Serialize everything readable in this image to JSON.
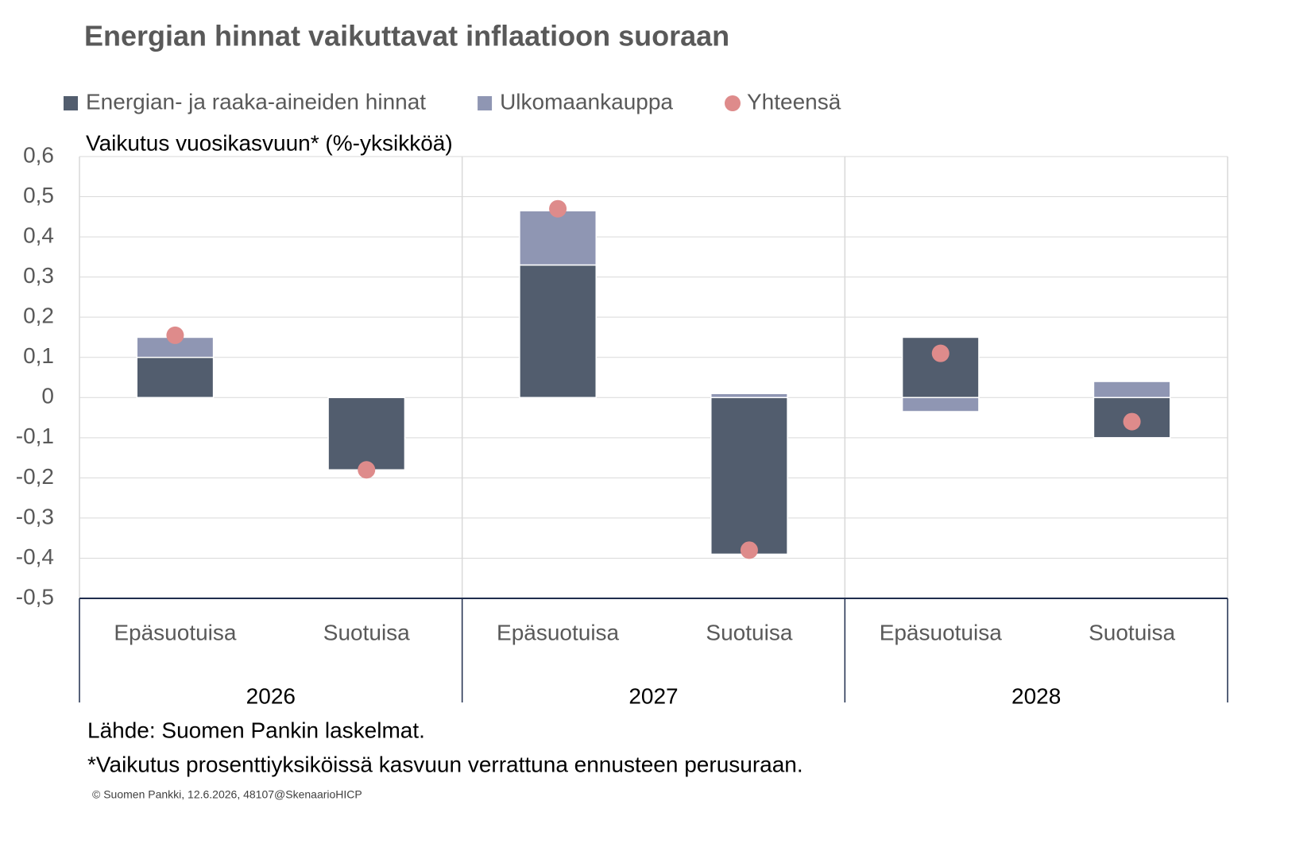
{
  "chart_data": {
    "type": "bar",
    "stacked": true,
    "title": "Energian hinnat vaikuttavat inflaatioon suoraan",
    "y_label": "Vaikutus vuosikasvuun* (%-yksikköä)",
    "categories": [
      "Epäsuotuisa",
      "Suotuisa",
      "Epäsuotuisa",
      "Suotuisa",
      "Epäsuotuisa",
      "Suotuisa"
    ],
    "groups": [
      "2026",
      "2027",
      "2028"
    ],
    "series": [
      {
        "name": "Energian- ja raaka-aineiden hinnat",
        "color": "#525d6e",
        "values": [
          0.1,
          -0.18,
          0.33,
          -0.39,
          0.15,
          -0.1
        ]
      },
      {
        "name": "Ulkomaankauppa",
        "color": "#8f96b3",
        "values": [
          0.05,
          0,
          0.135,
          0.01,
          -0.035,
          0.04
        ]
      },
      {
        "name": "Yhteensä",
        "type": "scatter",
        "color": "#de8b8b",
        "values": [
          0.155,
          -0.18,
          0.47,
          -0.38,
          0.11,
          -0.06
        ]
      }
    ],
    "ylim": [
      -0.5,
      0.6
    ],
    "yticks": [
      {
        "value": 0.6,
        "label": "0,6"
      },
      {
        "value": 0.5,
        "label": "0,5"
      },
      {
        "value": 0.4,
        "label": "0,4"
      },
      {
        "value": 0.3,
        "label": "0,3"
      },
      {
        "value": 0.2,
        "label": "0,2"
      },
      {
        "value": 0.1,
        "label": "0,1"
      },
      0,
      {
        "value": -0.1,
        "label": "-0,1"
      },
      {
        "value": -0.2,
        "label": "-0,2"
      },
      {
        "value": -0.3,
        "label": "-0,3"
      },
      {
        "value": -0.4,
        "label": "-0,4"
      },
      {
        "value": -0.5,
        "label": "-0,5"
      }
    ],
    "grid": true,
    "legend": "top",
    "source": "Lähde: Suomen Pankin laskelmat.",
    "footnote": "*Vaikutus prosenttiyksiköissä kasvuun verrattuna ennusteen perusuraan.",
    "copyright": "© Suomen Pankki, 12.6.2026, 48107@SkenaarioHICP"
  }
}
